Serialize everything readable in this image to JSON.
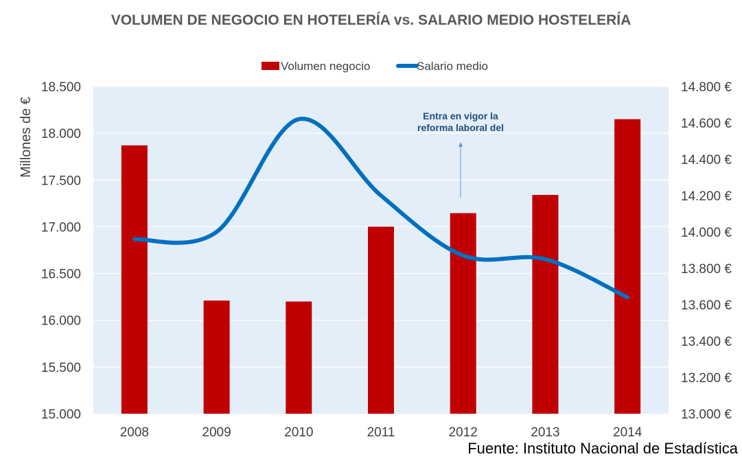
{
  "chart_data": {
    "type": "bar+line",
    "title": "VOLUMEN DE NEGOCIO EN HOTELERÍA vs. SALARIO MEDIO HOSTELERÍA",
    "categories": [
      "2008",
      "2009",
      "2010",
      "2011",
      "2012",
      "2013",
      "2014"
    ],
    "series": [
      {
        "name": "Volumen negocio",
        "type": "bar",
        "axis": "left",
        "color": "#c00000",
        "values": [
          17870,
          16210,
          16200,
          17000,
          17145,
          17340,
          18150
        ]
      },
      {
        "name": "Salario medio",
        "type": "line",
        "smooth": true,
        "axis": "right",
        "color": "#0070c0",
        "values": [
          13960,
          14000,
          14620,
          14200,
          13870,
          13850,
          13640
        ]
      }
    ],
    "left_axis": {
      "label": "Millones de €",
      "ylim": [
        15000,
        18500
      ],
      "ticks": [
        15000,
        15500,
        16000,
        16500,
        17000,
        17500,
        18000,
        18500
      ],
      "tick_labels": [
        "15.000",
        "15.500",
        "16.000",
        "16.500",
        "17.000",
        "17.500",
        "18.000",
        "18.500"
      ]
    },
    "right_axis": {
      "label": "",
      "ylim": [
        13000,
        14800
      ],
      "ticks": [
        13000,
        13200,
        13400,
        13600,
        13800,
        14000,
        14200,
        14400,
        14600,
        14800
      ],
      "tick_labels": [
        "13.000 €",
        "13.200 €",
        "13.400 €",
        "13.600 €",
        "13.800 €",
        "14.000 €",
        "14.200 €",
        "14.400 €",
        "14.600 €",
        "14.800 €"
      ]
    },
    "legend_position": "top",
    "grid": true,
    "annotation": {
      "text_line1": "Entra en vigor la",
      "text_line2": "reforma laboral del",
      "category": "2012"
    },
    "source": "Fuente: Instituto Nacional de Estadística"
  },
  "colors": {
    "plot_background": "#e3eef8",
    "gridline": "#ffffff",
    "bar": "#c00000",
    "line": "#0070c0",
    "annotation": "#1f4e79"
  }
}
